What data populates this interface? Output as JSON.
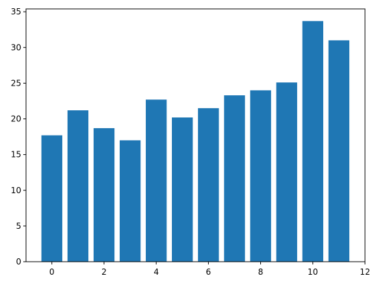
{
  "chart_data": {
    "type": "bar",
    "title": "",
    "xlabel": "",
    "ylabel": "",
    "x": [
      0,
      1,
      2,
      3,
      4,
      5,
      6,
      7,
      8,
      9,
      10,
      11
    ],
    "values": [
      17.7,
      21.2,
      18.7,
      17.0,
      22.7,
      20.2,
      21.5,
      23.3,
      24.0,
      25.1,
      33.7,
      31.0
    ],
    "bar_width": 0.8,
    "xlim": [
      -0.99,
      12.0
    ],
    "ylim": [
      0,
      35.4
    ],
    "xticks": [
      0,
      2,
      4,
      6,
      8,
      10,
      12
    ],
    "xtick_labels": [
      "0",
      "2",
      "4",
      "6",
      "8",
      "10",
      "12"
    ],
    "yticks": [
      0,
      5,
      10,
      15,
      20,
      25,
      30,
      35
    ],
    "ytick_labels": [
      "0",
      "5",
      "10",
      "15",
      "20",
      "25",
      "30",
      "35"
    ],
    "bar_color": "#1f77b4",
    "grid": false,
    "legend": "none"
  }
}
